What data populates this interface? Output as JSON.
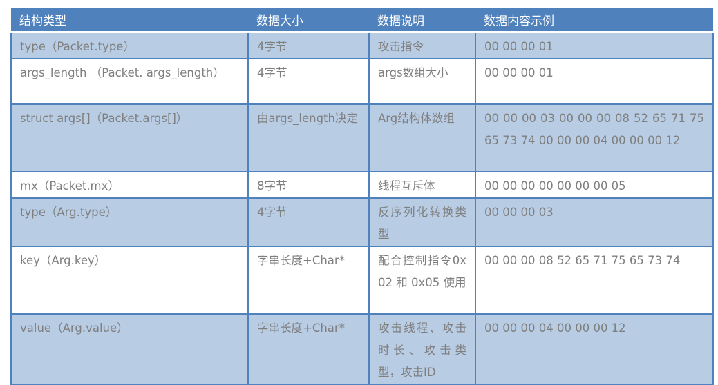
{
  "headers": [
    "结构类型",
    "数据大小",
    "数据说明",
    "数据内容示例"
  ],
  "rows": [
    {
      "type": "type（Packet.type）",
      "size": "4字节",
      "desc": "攻击指令",
      "example": "00 00 00 01"
    },
    {
      "type": "args_length （Packet. args_length）",
      "size": "4字节",
      "desc": "args数组大小",
      "example": "00 00 00 01"
    },
    {
      "type": "struct args[]（Packet.args[]）",
      "size": "由args_length决定",
      "desc": "Arg结构体数组",
      "example": "00 00 00 03 00 00 00 08 52 65 71 75 65 73 74 00 00 00 04 00 00 00 12"
    },
    {
      "type": "mx（Packet.mx）",
      "size": "8字节",
      "desc": "线程互斥体",
      "example": "00 00 00 00 00 00 00 05"
    },
    {
      "type": "type（Arg.type）",
      "size": "4字节",
      "desc": "反序列化转换类型",
      "example": "00 00 00 03"
    },
    {
      "type": "key（Arg.key）",
      "size": "字串长度+Char*",
      "desc": "配合控制指令0x02 和 0x05 使用",
      "example": "00 00 00 08 52 65 71 75 65 73 74"
    },
    {
      "type": "value（Arg.value）",
      "size": "字串长度+Char*",
      "desc": "攻击线程、攻击时长、攻击类型，攻击ID",
      "example": "00 00 00 04 00 00 00 12"
    }
  ],
  "colors": {
    "header": "#4f81bd",
    "shaded_row": "#b8cce4",
    "text": "#7f7f7f"
  }
}
